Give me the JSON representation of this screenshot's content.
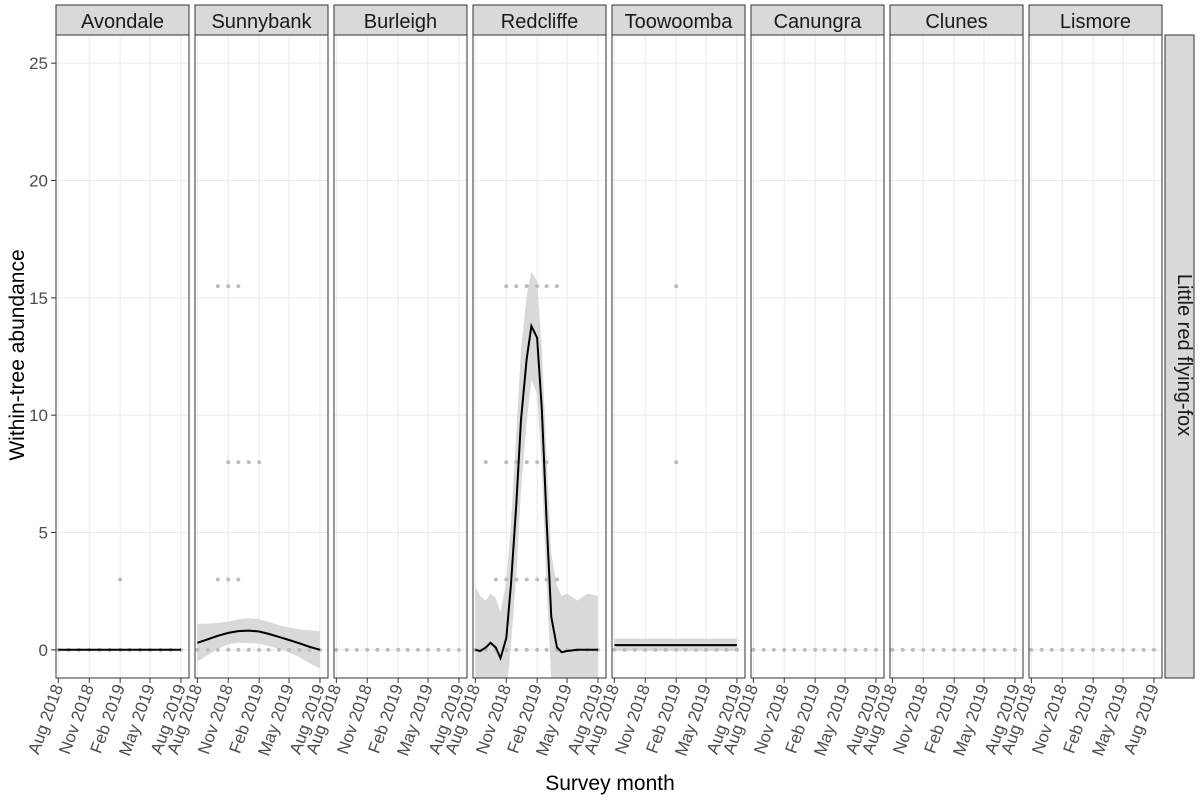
{
  "chart_data": {
    "type": "scatter",
    "xlabel": "Survey month",
    "ylabel": "Within-tree abundance",
    "row_strip": "Little red flying-fox",
    "ylim": [
      -1.2,
      26.2
    ],
    "yticks": [
      0,
      5,
      10,
      15,
      20,
      25
    ],
    "xlim": [
      "2018-07-25",
      "2019-08-25"
    ],
    "xticks": [
      {
        "date": "2018-08-01",
        "label": "Aug 2018"
      },
      {
        "date": "2018-11-01",
        "label": "Nov 2018"
      },
      {
        "date": "2019-02-01",
        "label": "Feb 2019"
      },
      {
        "date": "2019-05-01",
        "label": "May 2019"
      },
      {
        "date": "2019-08-01",
        "label": "Aug 2019"
      }
    ],
    "grid": true,
    "colors": {
      "points": "#bdbdbd",
      "smooth_line": "#000000",
      "ribbon": "#d9d9d9",
      "strip_bg": "#d9d9d9",
      "gridline": "#ebebeb"
    },
    "panels": [
      {
        "site": "Avondale",
        "points": [
          [
            "2018-08-01",
            0
          ],
          [
            "2018-09-01",
            0
          ],
          [
            "2018-10-01",
            0
          ],
          [
            "2018-11-01",
            0
          ],
          [
            "2018-12-01",
            0
          ],
          [
            "2019-01-01",
            0
          ],
          [
            "2019-02-01",
            3
          ],
          [
            "2019-02-01",
            0
          ],
          [
            "2019-03-01",
            0
          ],
          [
            "2019-04-01",
            0
          ],
          [
            "2019-05-01",
            0
          ],
          [
            "2019-06-01",
            0
          ],
          [
            "2019-07-01",
            0
          ],
          [
            "2019-08-01",
            0
          ]
        ],
        "smooth": [
          [
            "2018-08-01",
            0
          ],
          [
            "2019-08-01",
            0
          ]
        ],
        "ribbon_upper": [],
        "ribbon_lower": []
      },
      {
        "site": "Sunnybank",
        "points": [
          [
            "2018-08-01",
            0
          ],
          [
            "2018-09-01",
            0
          ],
          [
            "2018-10-01",
            15.5
          ],
          [
            "2018-10-01",
            3
          ],
          [
            "2018-10-01",
            0
          ],
          [
            "2018-11-01",
            15.5
          ],
          [
            "2018-11-01",
            8
          ],
          [
            "2018-11-01",
            3
          ],
          [
            "2018-11-01",
            0
          ],
          [
            "2018-12-01",
            15.5
          ],
          [
            "2018-12-01",
            8
          ],
          [
            "2018-12-01",
            3
          ],
          [
            "2018-12-01",
            0
          ],
          [
            "2019-01-01",
            8
          ],
          [
            "2019-01-01",
            0
          ],
          [
            "2019-02-01",
            8
          ],
          [
            "2019-02-01",
            0
          ],
          [
            "2019-03-01",
            0
          ],
          [
            "2019-04-01",
            0
          ],
          [
            "2019-05-01",
            0
          ],
          [
            "2019-06-01",
            0
          ],
          [
            "2019-07-01",
            0
          ],
          [
            "2019-08-01",
            0
          ]
        ],
        "smooth": [
          [
            "2018-08-01",
            0.3
          ],
          [
            "2018-09-01",
            0.45
          ],
          [
            "2018-10-01",
            0.6
          ],
          [
            "2018-11-01",
            0.72
          ],
          [
            "2018-12-01",
            0.8
          ],
          [
            "2019-01-01",
            0.82
          ],
          [
            "2019-02-01",
            0.78
          ],
          [
            "2019-03-01",
            0.68
          ],
          [
            "2019-04-01",
            0.55
          ],
          [
            "2019-05-01",
            0.42
          ],
          [
            "2019-06-01",
            0.28
          ],
          [
            "2019-07-01",
            0.13
          ],
          [
            "2019-08-01",
            0
          ]
        ],
        "ribbon_upper": [
          [
            "2018-08-01",
            1.1
          ],
          [
            "2018-09-01",
            1.12
          ],
          [
            "2018-10-01",
            1.15
          ],
          [
            "2018-11-01",
            1.2
          ],
          [
            "2018-12-01",
            1.3
          ],
          [
            "2019-01-01",
            1.35
          ],
          [
            "2019-02-01",
            1.3
          ],
          [
            "2019-03-01",
            1.2
          ],
          [
            "2019-04-01",
            1.05
          ],
          [
            "2019-05-01",
            0.95
          ],
          [
            "2019-06-01",
            0.88
          ],
          [
            "2019-07-01",
            0.83
          ],
          [
            "2019-08-01",
            0.8
          ]
        ],
        "ribbon_lower": [
          [
            "2018-08-01",
            -0.5
          ],
          [
            "2018-09-01",
            -0.22
          ],
          [
            "2018-10-01",
            0.05
          ],
          [
            "2018-11-01",
            0.24
          ],
          [
            "2018-12-01",
            0.3
          ],
          [
            "2019-01-01",
            0.29
          ],
          [
            "2019-02-01",
            0.26
          ],
          [
            "2019-03-01",
            0.16
          ],
          [
            "2019-04-01",
            0.05
          ],
          [
            "2019-05-01",
            -0.11
          ],
          [
            "2019-06-01",
            -0.32
          ],
          [
            "2019-07-01",
            -0.57
          ],
          [
            "2019-08-01",
            -0.8
          ]
        ]
      },
      {
        "site": "Burleigh",
        "points": [
          [
            "2018-08-01",
            0
          ],
          [
            "2018-09-01",
            0
          ],
          [
            "2018-10-01",
            0
          ],
          [
            "2018-11-01",
            0
          ],
          [
            "2018-12-01",
            0
          ],
          [
            "2019-01-01",
            0
          ],
          [
            "2019-02-01",
            0
          ],
          [
            "2019-03-01",
            0
          ],
          [
            "2019-04-01",
            0
          ],
          [
            "2019-05-01",
            0
          ],
          [
            "2019-06-01",
            0
          ],
          [
            "2019-07-01",
            0
          ],
          [
            "2019-08-01",
            0
          ]
        ],
        "smooth": [],
        "ribbon_upper": [],
        "ribbon_lower": []
      },
      {
        "site": "Redcliffe",
        "points": [
          [
            "2018-08-01",
            0
          ],
          [
            "2018-09-01",
            8
          ],
          [
            "2018-09-01",
            0
          ],
          [
            "2018-10-01",
            3
          ],
          [
            "2018-10-01",
            0
          ],
          [
            "2018-11-01",
            15.5
          ],
          [
            "2018-11-01",
            8
          ],
          [
            "2018-11-01",
            3
          ],
          [
            "2018-11-01",
            0
          ],
          [
            "2018-12-01",
            15.5
          ],
          [
            "2018-12-01",
            8
          ],
          [
            "2018-12-01",
            3
          ],
          [
            "2018-12-01",
            0
          ],
          [
            "2019-01-01",
            15.5
          ],
          [
            "2019-01-01",
            8
          ],
          [
            "2019-01-01",
            3
          ],
          [
            "2019-01-01",
            0
          ],
          [
            "2019-02-01",
            15.5
          ],
          [
            "2019-02-01",
            8
          ],
          [
            "2019-02-01",
            3
          ],
          [
            "2019-02-01",
            0
          ],
          [
            "2019-03-01",
            15.5
          ],
          [
            "2019-03-01",
            8
          ],
          [
            "2019-03-01",
            3
          ],
          [
            "2019-03-01",
            0
          ],
          [
            "2019-04-01",
            15.5
          ],
          [
            "2019-04-01",
            3
          ],
          [
            "2019-04-01",
            0
          ],
          [
            "2019-05-01",
            0
          ],
          [
            "2019-06-01",
            0
          ],
          [
            "2019-07-01",
            0
          ],
          [
            "2019-08-01",
            0
          ]
        ],
        "smooth": [
          [
            "2018-08-01",
            0
          ],
          [
            "2018-08-15",
            -0.05
          ],
          [
            "2018-09-01",
            0.1
          ],
          [
            "2018-09-15",
            0.3
          ],
          [
            "2018-10-01",
            0.1
          ],
          [
            "2018-10-15",
            -0.35
          ],
          [
            "2018-11-01",
            0.5
          ],
          [
            "2018-11-15",
            2.8
          ],
          [
            "2018-12-01",
            6.2
          ],
          [
            "2018-12-15",
            9.8
          ],
          [
            "2019-01-01",
            12.4
          ],
          [
            "2019-01-15",
            13.8
          ],
          [
            "2019-02-01",
            13.3
          ],
          [
            "2019-02-15",
            10.2
          ],
          [
            "2019-03-01",
            5.5
          ],
          [
            "2019-03-15",
            1.4
          ],
          [
            "2019-04-01",
            0.1
          ],
          [
            "2019-04-15",
            -0.1
          ],
          [
            "2019-05-01",
            -0.05
          ],
          [
            "2019-06-01",
            0
          ],
          [
            "2019-07-01",
            0
          ],
          [
            "2019-08-01",
            0
          ]
        ],
        "ribbon_upper": [
          [
            "2018-08-01",
            2.7
          ],
          [
            "2018-08-15",
            2.3
          ],
          [
            "2018-09-01",
            2.1
          ],
          [
            "2018-09-15",
            2.4
          ],
          [
            "2018-10-01",
            2.2
          ],
          [
            "2018-10-15",
            1.6
          ],
          [
            "2018-11-01",
            2.9
          ],
          [
            "2018-11-15",
            5.4
          ],
          [
            "2018-12-01",
            9.2
          ],
          [
            "2018-12-15",
            12.8
          ],
          [
            "2019-01-01",
            15.1
          ],
          [
            "2019-01-15",
            16.1
          ],
          [
            "2019-02-01",
            15.7
          ],
          [
            "2019-02-15",
            12.8
          ],
          [
            "2019-03-01",
            8.3
          ],
          [
            "2019-03-15",
            4.1
          ],
          [
            "2019-04-01",
            2.7
          ],
          [
            "2019-04-15",
            2.3
          ],
          [
            "2019-05-01",
            2.4
          ],
          [
            "2019-06-01",
            2.1
          ],
          [
            "2019-07-01",
            2.4
          ],
          [
            "2019-08-01",
            2.3
          ]
        ],
        "ribbon_lower": [
          [
            "2018-08-01",
            -1.3
          ],
          [
            "2018-08-15",
            -2.4
          ],
          [
            "2018-09-01",
            -1.9
          ],
          [
            "2018-09-15",
            -1.8
          ],
          [
            "2018-10-01",
            -2.0
          ],
          [
            "2018-10-15",
            -2.3
          ],
          [
            "2018-11-01",
            -1.9
          ],
          [
            "2018-11-15",
            0.2
          ],
          [
            "2018-12-01",
            3.2
          ],
          [
            "2018-12-15",
            6.8
          ],
          [
            "2019-01-01",
            9.7
          ],
          [
            "2019-01-15",
            11.5
          ],
          [
            "2019-02-01",
            10.9
          ],
          [
            "2019-02-15",
            7.6
          ],
          [
            "2019-03-01",
            2.7
          ],
          [
            "2019-03-15",
            -1.3
          ],
          [
            "2019-04-01",
            -2.5
          ],
          [
            "2019-04-15",
            -2.5
          ],
          [
            "2019-05-01",
            -2.5
          ],
          [
            "2019-06-01",
            -2.1
          ],
          [
            "2019-07-01",
            -2.4
          ],
          [
            "2019-08-01",
            -2.3
          ]
        ]
      },
      {
        "site": "Toowoomba",
        "points": [
          [
            "2018-08-01",
            0
          ],
          [
            "2018-09-01",
            0
          ],
          [
            "2018-10-01",
            0
          ],
          [
            "2018-11-01",
            0
          ],
          [
            "2018-12-01",
            0
          ],
          [
            "2019-01-01",
            0
          ],
          [
            "2019-02-01",
            15.5
          ],
          [
            "2019-02-01",
            8
          ],
          [
            "2019-02-01",
            0
          ],
          [
            "2019-03-01",
            0
          ],
          [
            "2019-04-01",
            0
          ],
          [
            "2019-05-01",
            0
          ],
          [
            "2019-06-01",
            0
          ],
          [
            "2019-07-01",
            0
          ],
          [
            "2019-08-01",
            0
          ]
        ],
        "smooth": [
          [
            "2018-08-01",
            0.2
          ],
          [
            "2019-08-01",
            0.2
          ]
        ],
        "ribbon_upper": [
          [
            "2018-08-01",
            0.48
          ],
          [
            "2019-08-01",
            0.48
          ]
        ],
        "ribbon_lower": [
          [
            "2018-08-01",
            -0.05
          ],
          [
            "2019-08-01",
            -0.05
          ]
        ]
      },
      {
        "site": "Canungra",
        "points": [
          [
            "2018-08-01",
            0
          ],
          [
            "2018-09-01",
            0
          ],
          [
            "2018-10-01",
            0
          ],
          [
            "2018-11-01",
            0
          ],
          [
            "2018-12-01",
            0
          ],
          [
            "2019-01-01",
            0
          ],
          [
            "2019-02-01",
            0
          ],
          [
            "2019-03-01",
            0
          ],
          [
            "2019-04-01",
            0
          ],
          [
            "2019-05-01",
            0
          ],
          [
            "2019-06-01",
            0
          ],
          [
            "2019-07-01",
            0
          ],
          [
            "2019-08-01",
            0
          ]
        ],
        "smooth": [],
        "ribbon_upper": [],
        "ribbon_lower": []
      },
      {
        "site": "Clunes",
        "points": [
          [
            "2018-08-01",
            0
          ],
          [
            "2018-09-01",
            0
          ],
          [
            "2018-10-01",
            0
          ],
          [
            "2018-11-01",
            0
          ],
          [
            "2018-12-01",
            0
          ],
          [
            "2019-01-01",
            0
          ],
          [
            "2019-02-01",
            0
          ],
          [
            "2019-03-01",
            0
          ],
          [
            "2019-04-01",
            0
          ],
          [
            "2019-05-01",
            0
          ],
          [
            "2019-06-01",
            0
          ],
          [
            "2019-07-01",
            0
          ],
          [
            "2019-08-01",
            0
          ]
        ],
        "smooth": [],
        "ribbon_upper": [],
        "ribbon_lower": []
      },
      {
        "site": "Lismore",
        "points": [
          [
            "2018-08-01",
            0
          ],
          [
            "2018-09-01",
            0
          ],
          [
            "2018-10-01",
            0
          ],
          [
            "2018-11-01",
            0
          ],
          [
            "2018-12-01",
            0
          ],
          [
            "2019-01-01",
            0
          ],
          [
            "2019-02-01",
            0
          ],
          [
            "2019-03-01",
            0
          ],
          [
            "2019-04-01",
            0
          ],
          [
            "2019-05-01",
            0
          ],
          [
            "2019-06-01",
            0
          ],
          [
            "2019-07-01",
            0
          ],
          [
            "2019-08-01",
            0
          ]
        ],
        "smooth": [],
        "ribbon_upper": [],
        "ribbon_lower": []
      }
    ]
  }
}
